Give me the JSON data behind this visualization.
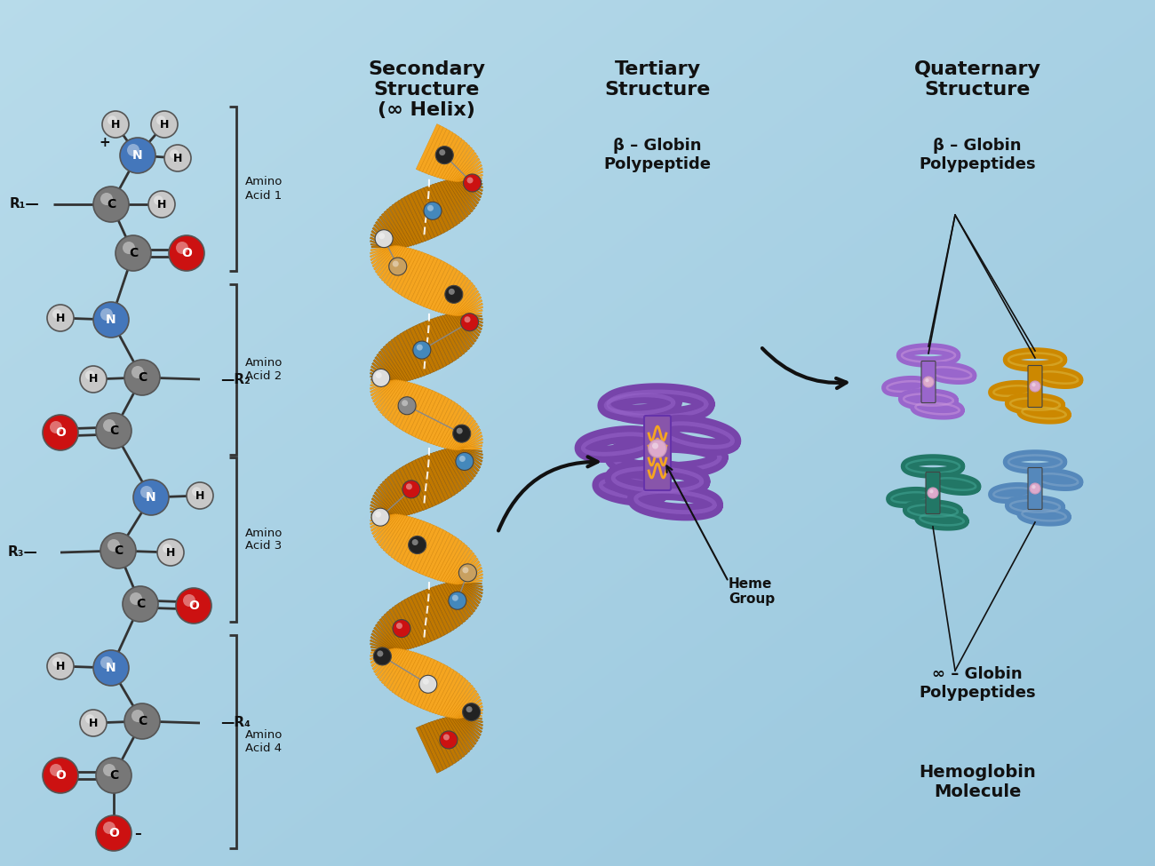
{
  "background_gradient": {
    "top_left": "#8cc8de",
    "bottom_right": "#b8dcea"
  },
  "colors": {
    "H_atom": "#c8c8c8",
    "N_atom": "#4477bb",
    "C_atom": "#777777",
    "O_atom": "#cc1111",
    "bond_line": "#222222",
    "helix_ribbon": "#f5a520",
    "helix_ribbon_dark": "#c07800",
    "helix_ribbon_edge": "#e08800",
    "atom_black": "#222222",
    "atom_white": "#dddddd",
    "atom_blue": "#4488bb",
    "atom_red": "#cc1111",
    "atom_tan": "#c8a060",
    "atom_gray": "#888888",
    "protein_purple": "#7744aa",
    "protein_purple_light": "#9966cc",
    "protein_gold": "#cc8800",
    "protein_teal": "#227766",
    "protein_blue_light": "#5588bb",
    "heme_pink": "#ddaacc",
    "text_dark": "#111111",
    "bracket_color": "#333333"
  },
  "secondary_label": "Secondary\nStructure\n(∞ Helix)",
  "tertiary_label": "Tertiary\nStructure",
  "tertiary_sublabel": "β – Globin\nPolypeptide",
  "quaternary_label": "Quaternary\nStructure",
  "quaternary_beta_sublabel": "β – Globin\nPolypeptides",
  "quaternary_alpha_sublabel": "∞ – Globin\nPolypeptides",
  "hemoglobin_label": "Hemoglobin\nMolecule",
  "heme_group_label": "Heme\nGroup",
  "amino_labels": [
    "Amino\nAcid 1",
    "Amino\nAcid 2",
    "Amino\nAcid 3",
    "Amino\nAcid 4"
  ]
}
